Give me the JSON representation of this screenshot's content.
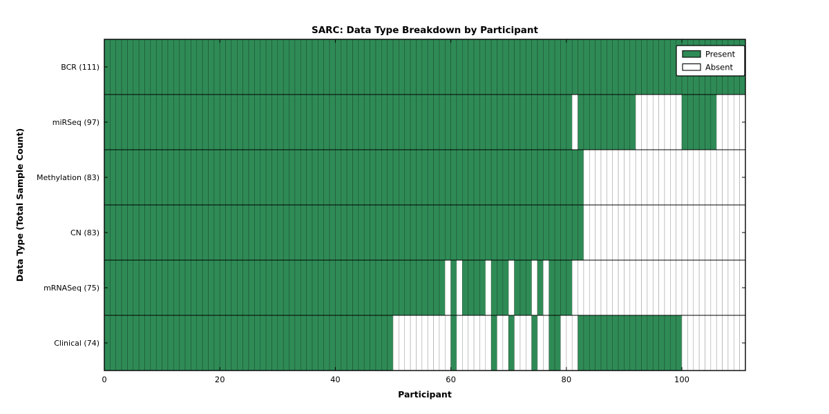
{
  "title": "SARC: Data Type Breakdown by Participant",
  "xlabel": "Participant",
  "ylabel": "Data Type (Total Sample Count)",
  "legend": {
    "present_label": "Present",
    "absent_label": "Absent"
  },
  "colors": {
    "present": "#2f8b56",
    "present_edge": "#1c4c30",
    "absent": "#ffffff",
    "absent_edge": "#9c9c9c",
    "frame": "#000000",
    "text": "#000000"
  },
  "chart_data": {
    "type": "heatmap",
    "title": "SARC: Data Type Breakdown by Participant",
    "xlabel": "Participant",
    "ylabel": "Data Type (Total Sample Count)",
    "x_ticks": [
      0,
      20,
      40,
      60,
      80,
      100
    ],
    "x_range": [
      0,
      111
    ],
    "n_participants": 111,
    "legend_entries": [
      "Present",
      "Absent"
    ],
    "legend_position": "upper right",
    "rows": [
      {
        "name": "BCR",
        "label": "BCR (111)",
        "total_samples": 111,
        "present_ranges": [
          [
            0,
            110
          ]
        ]
      },
      {
        "name": "miRSeq",
        "label": "miRSeq (97)",
        "total_samples": 97,
        "present_ranges": [
          [
            0,
            80
          ],
          [
            82,
            91
          ],
          [
            100,
            105
          ]
        ]
      },
      {
        "name": "Methylation",
        "label": "Methylation (83)",
        "total_samples": 83,
        "present_ranges": [
          [
            0,
            82
          ]
        ]
      },
      {
        "name": "CN",
        "label": "CN (83)",
        "total_samples": 83,
        "present_ranges": [
          [
            0,
            82
          ]
        ]
      },
      {
        "name": "mRNASeq",
        "label": "mRNASeq (75)",
        "total_samples": 75,
        "present_ranges": [
          [
            0,
            58
          ],
          [
            60,
            60
          ],
          [
            62,
            65
          ],
          [
            67,
            69
          ],
          [
            71,
            73
          ],
          [
            75,
            75
          ],
          [
            77,
            80
          ]
        ]
      },
      {
        "name": "Clinical",
        "label": "Clinical (74)",
        "total_samples": 74,
        "present_ranges": [
          [
            0,
            49
          ],
          [
            60,
            60
          ],
          [
            67,
            67
          ],
          [
            70,
            70
          ],
          [
            74,
            74
          ],
          [
            77,
            78
          ],
          [
            82,
            99
          ]
        ]
      }
    ]
  }
}
